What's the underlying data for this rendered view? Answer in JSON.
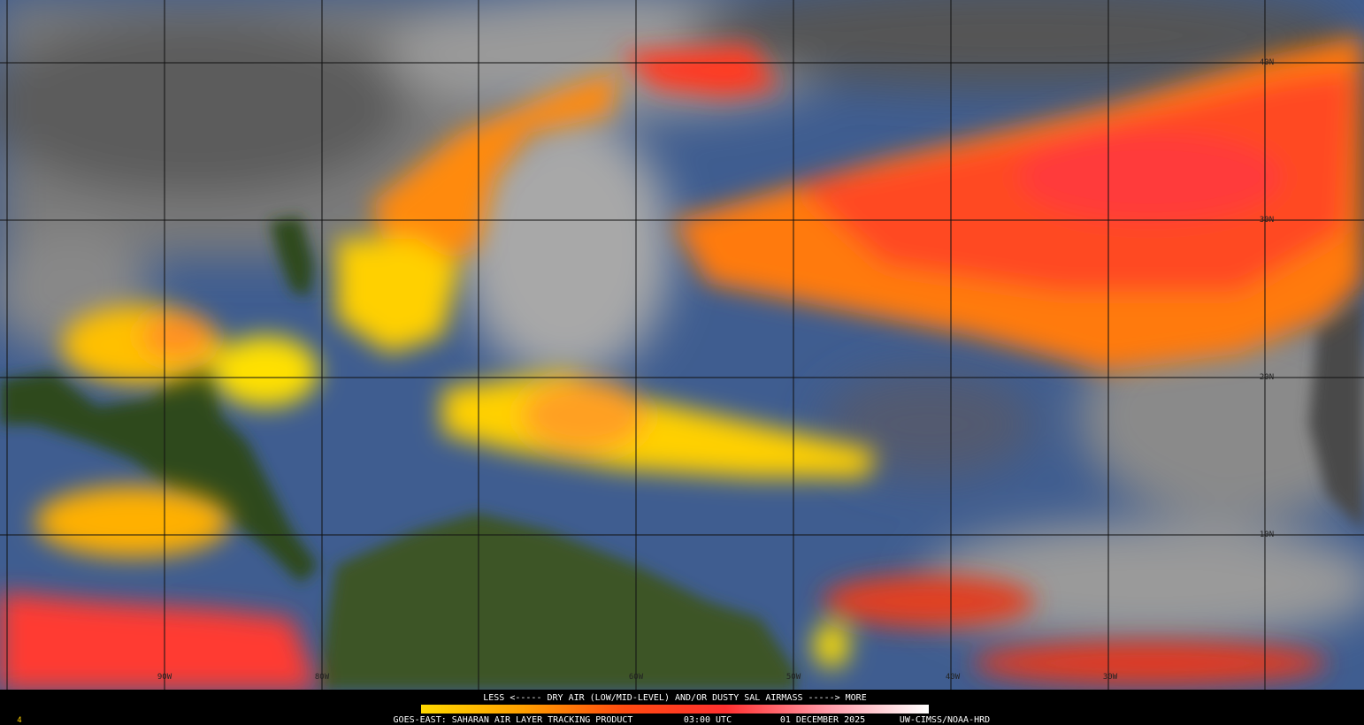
{
  "map": {
    "lon_labels": [
      "90W",
      "80W",
      "60W",
      "50W",
      "40W",
      "30W"
    ],
    "lat_labels": [
      "40N",
      "30N",
      "20N",
      "10N"
    ]
  },
  "legend": {
    "caption": "LESS <----- DRY AIR (LOW/MID-LEVEL) AND/OR DUSTY SAL AIRMASS -----> MORE"
  },
  "footer": {
    "frame": "4",
    "product": "GOES-EAST: SAHARAN AIR LAYER TRACKING PRODUCT",
    "time": "03:00 UTC",
    "date": "01 DECEMBER 2025",
    "credit": "UW-CIMSS/NOAA-HRD"
  }
}
